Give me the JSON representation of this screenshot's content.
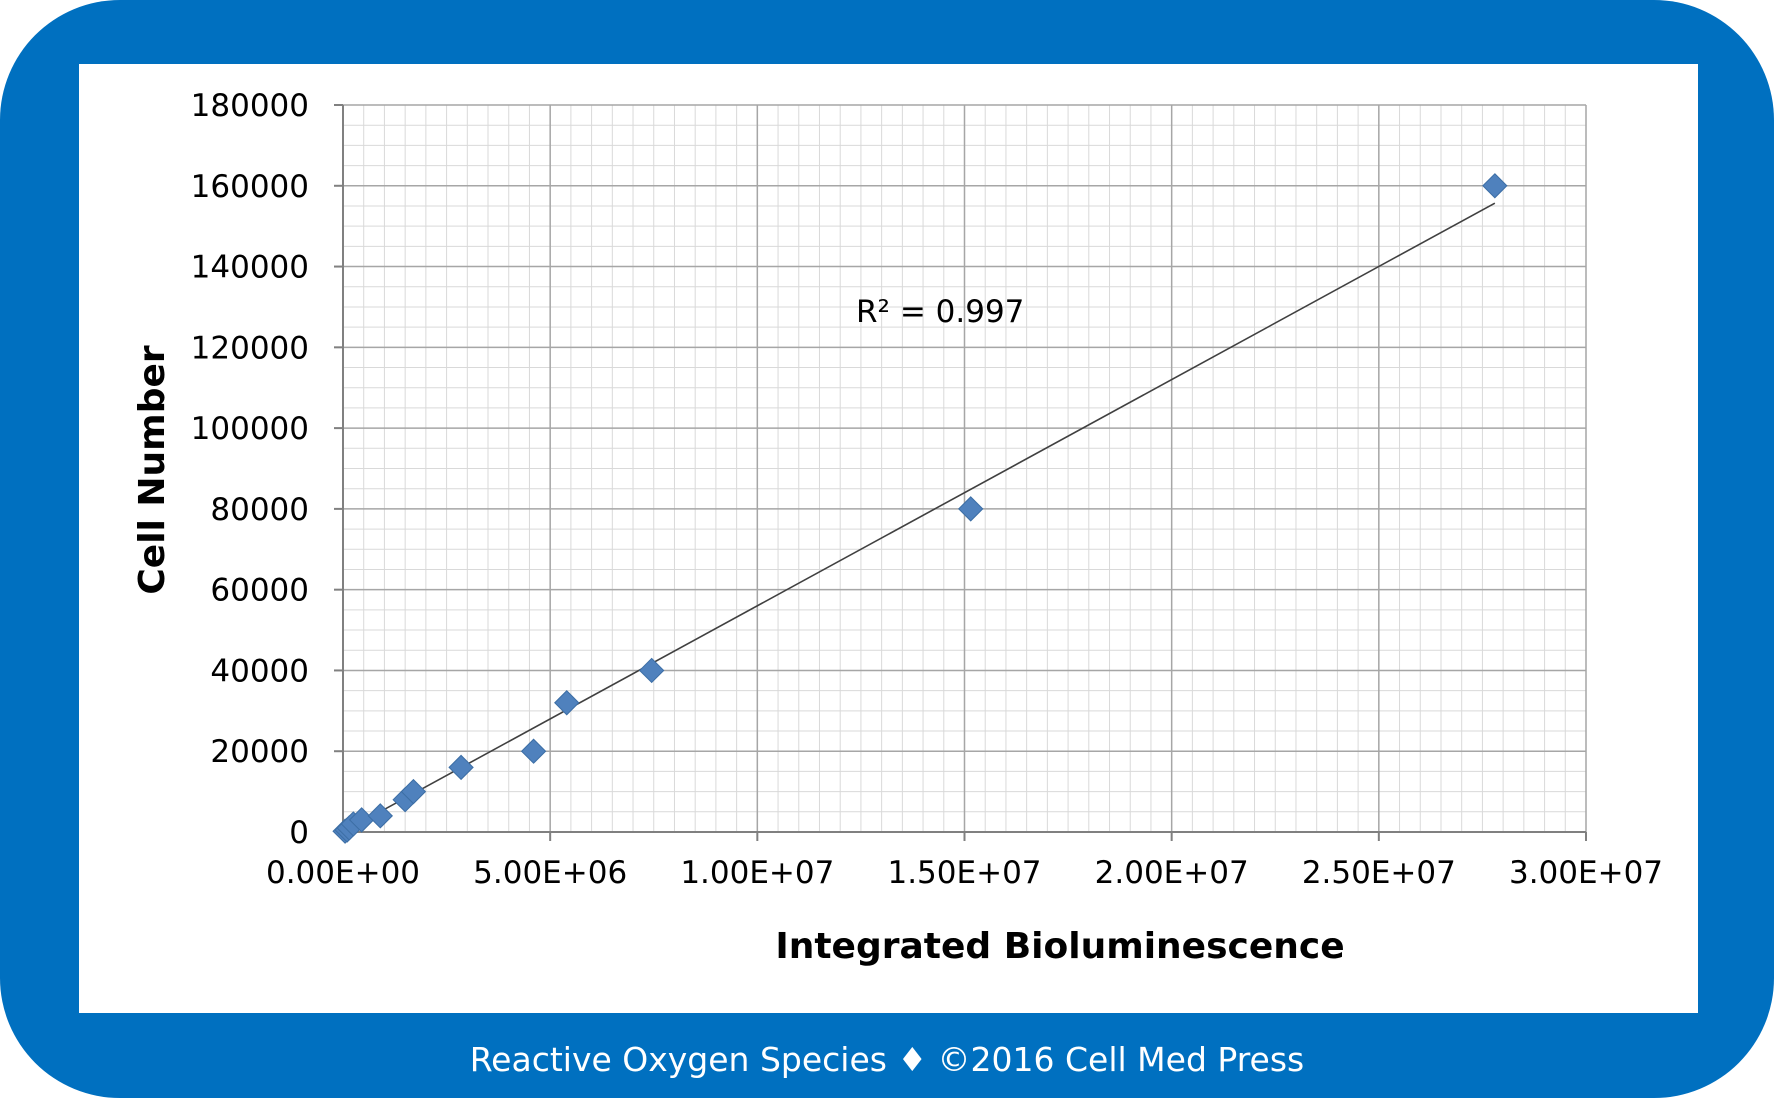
{
  "chart_data": {
    "type": "scatter",
    "title": "",
    "xlabel": "Integrated Bioluminescence",
    "ylabel": "Cell Number",
    "xlim": [
      0,
      30000000
    ],
    "ylim": [
      0,
      180000
    ],
    "x_ticks": [
      0,
      5000000,
      10000000,
      15000000,
      20000000,
      25000000,
      30000000
    ],
    "x_tick_labels": [
      "0.00E+00",
      "5.00E+06",
      "1.00E+07",
      "1.50E+07",
      "2.00E+07",
      "2.50E+07",
      "3.00E+07"
    ],
    "y_ticks": [
      0,
      20000,
      40000,
      60000,
      80000,
      100000,
      120000,
      140000,
      160000,
      180000
    ],
    "y_tick_labels": [
      "0",
      "20000",
      "40000",
      "60000",
      "80000",
      "100000",
      "120000",
      "140000",
      "160000",
      "180000"
    ],
    "grid": true,
    "legend": "none",
    "marker": "diamond",
    "marker_color": "#4f81bd",
    "trendline_color": "#404040",
    "series": [
      {
        "x": [
          50000,
          100000,
          150000,
          250000,
          450000,
          900000,
          1500000,
          1700000,
          2850000,
          4600000,
          5400000,
          7450000,
          15150000,
          27800000
        ],
        "y": [
          200,
          500,
          1000,
          2000,
          3000,
          4000,
          8000,
          10000,
          16000,
          20000,
          32000,
          40000,
          80000,
          160000
        ]
      }
    ],
    "trendline": {
      "type": "linear",
      "x": [
        0,
        27800000
      ],
      "y": [
        0,
        155700
      ],
      "annotation": "R² = 0.997"
    }
  },
  "footer": {
    "text": "Reactive Oxygen Species ♦ ©2016 Cell Med Press"
  }
}
